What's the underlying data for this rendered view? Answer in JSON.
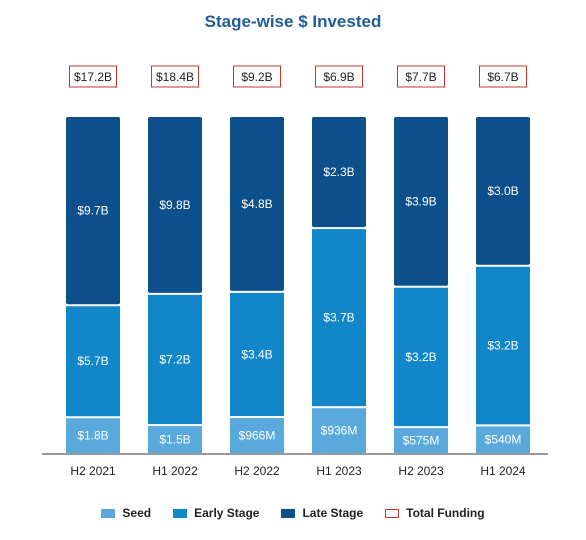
{
  "chart_data": {
    "type": "bar",
    "stacked": true,
    "title": "Stage-wise $ Invested",
    "categories": [
      "H2 2021",
      "H1 2022",
      "H2 2022",
      "H1 2023",
      "H2 2023",
      "H1 2024"
    ],
    "series": [
      {
        "name": "Seed",
        "values": [
          1.8,
          1.5,
          0.966,
          0.936,
          0.575,
          0.54
        ],
        "labels": [
          "$1.8B",
          "$1.5B",
          "$966M",
          "$936M",
          "$575M",
          "$540M"
        ],
        "color": "#5aa9dd"
      },
      {
        "name": "Early Stage",
        "values": [
          5.7,
          7.2,
          3.4,
          3.7,
          3.2,
          3.2
        ],
        "labels": [
          "$5.7B",
          "$7.2B",
          "$3.4B",
          "$3.7B",
          "$3.2B",
          "$3.2B"
        ],
        "color": "#1187c9"
      },
      {
        "name": "Late Stage",
        "values": [
          9.7,
          9.8,
          4.8,
          2.3,
          3.9,
          3.0
        ],
        "labels": [
          "$9.7B",
          "$9.8B",
          "$4.8B",
          "$2.3B",
          "$3.9B",
          "$3.0B"
        ],
        "color": "#0d4f8b"
      }
    ],
    "totals": {
      "name": "Total Funding",
      "values": [
        17.2,
        18.4,
        9.2,
        6.9,
        7.7,
        6.7
      ],
      "labels": [
        "$17.2B",
        "$18.4B",
        "$9.2B",
        "$6.9B",
        "$7.7B",
        "$6.7B"
      ],
      "color": "#c0392b"
    },
    "normalized": true,
    "legend": "bottom",
    "grid": false
  }
}
